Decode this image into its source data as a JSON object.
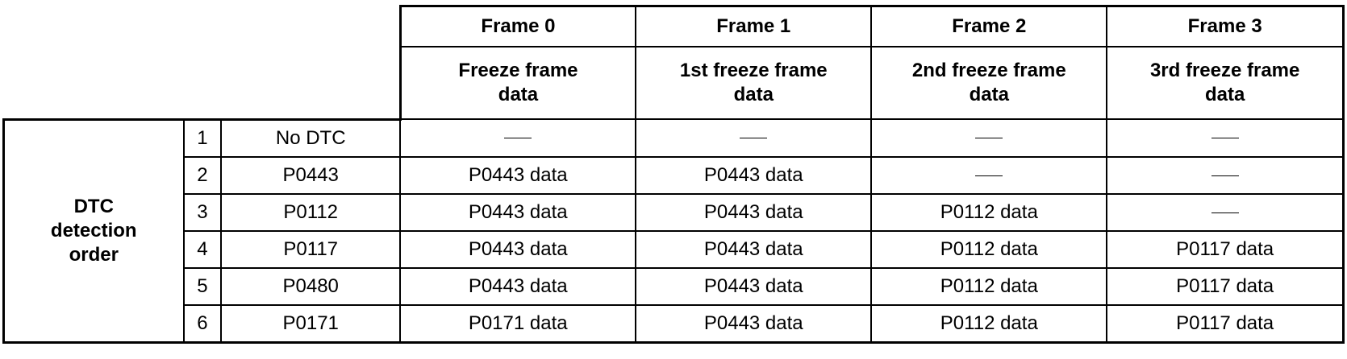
{
  "frames": [
    {
      "label": "Frame 0",
      "description": "Freeze frame\ndata"
    },
    {
      "label": "Frame 1",
      "description": "1st freeze frame\ndata"
    },
    {
      "label": "Frame 2",
      "description": "2nd freeze frame\ndata"
    },
    {
      "label": "Frame 3",
      "description": "3rd freeze frame\ndata"
    }
  ],
  "row_group_label": "DTC\ndetection\norder",
  "empty_marker": "—",
  "rows": [
    {
      "num": "1",
      "dtc": "No DTC",
      "cells": [
        "",
        "",
        "",
        ""
      ]
    },
    {
      "num": "2",
      "dtc": "P0443",
      "cells": [
        "P0443 data",
        "P0443 data",
        "",
        ""
      ]
    },
    {
      "num": "3",
      "dtc": "P0112",
      "cells": [
        "P0443 data",
        "P0443 data",
        "P0112 data",
        ""
      ]
    },
    {
      "num": "4",
      "dtc": "P0117",
      "cells": [
        "P0443 data",
        "P0443 data",
        "P0112 data",
        "P0117 data"
      ]
    },
    {
      "num": "5",
      "dtc": "P0480",
      "cells": [
        "P0443 data",
        "P0443 data",
        "P0112 data",
        "P0117 data"
      ]
    },
    {
      "num": "6",
      "dtc": "P0171",
      "cells": [
        "P0171 data",
        "P0443 data",
        "P0112 data",
        "P0117 data"
      ]
    }
  ]
}
